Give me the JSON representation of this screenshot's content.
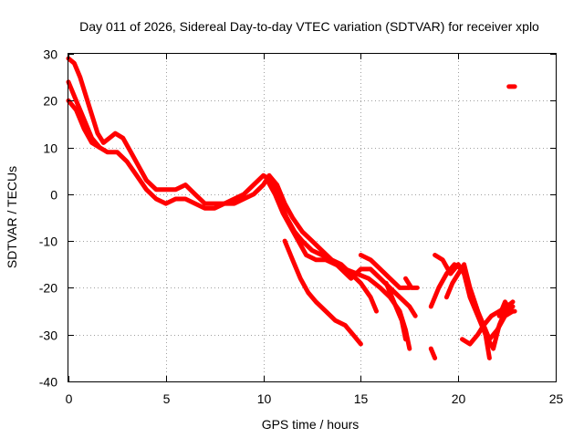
{
  "chart_data": {
    "type": "line",
    "title": "Day 011 of 2026, Sidereal Day-to-day VTEC variation (SDTVAR) for receiver xplo",
    "xlabel": "GPS time / hours",
    "ylabel": "SDTVAR / TECUs",
    "xlim": [
      0,
      25
    ],
    "ylim": [
      -40,
      30
    ],
    "xticks": [
      0,
      5,
      10,
      15,
      20,
      25
    ],
    "yticks": [
      -40,
      -30,
      -20,
      -10,
      0,
      10,
      20,
      30
    ],
    "grid": true,
    "legend": "none",
    "color": "#ff0000",
    "series": [
      {
        "name": "track-1",
        "points": [
          [
            0.0,
            29
          ],
          [
            0.3,
            28
          ],
          [
            0.6,
            25
          ],
          [
            0.9,
            21
          ],
          [
            1.2,
            17
          ],
          [
            1.5,
            13
          ],
          [
            1.8,
            11
          ],
          [
            2.1,
            12
          ],
          [
            2.4,
            13
          ],
          [
            2.8,
            12
          ],
          [
            3.2,
            9
          ],
          [
            3.6,
            6
          ],
          [
            4.0,
            3
          ],
          [
            4.5,
            1
          ],
          [
            5.0,
            1
          ],
          [
            5.5,
            1
          ],
          [
            6.0,
            2
          ],
          [
            6.5,
            0
          ],
          [
            7.0,
            -2
          ],
          [
            7.5,
            -2
          ],
          [
            8.0,
            -2
          ],
          [
            8.5,
            -1
          ],
          [
            9.0,
            0
          ],
          [
            9.5,
            2
          ],
          [
            10.0,
            4
          ],
          [
            10.4,
            3
          ],
          [
            10.8,
            -1
          ],
          [
            11.2,
            -5
          ],
          [
            11.6,
            -8
          ],
          [
            12.0,
            -10
          ],
          [
            12.5,
            -12
          ],
          [
            13.0,
            -13
          ],
          [
            13.5,
            -14
          ],
          [
            14.0,
            -16
          ],
          [
            14.5,
            -18
          ],
          [
            15.0,
            -16
          ],
          [
            15.5,
            -16
          ],
          [
            16.0,
            -18
          ],
          [
            16.5,
            -20
          ],
          [
            17.0,
            -22
          ],
          [
            17.5,
            -24
          ],
          [
            17.8,
            -26
          ]
        ]
      },
      {
        "name": "track-2",
        "points": [
          [
            0.0,
            24
          ],
          [
            0.4,
            20
          ],
          [
            0.8,
            16
          ],
          [
            1.2,
            12
          ],
          [
            1.6,
            10
          ],
          [
            2.0,
            9
          ],
          [
            2.5,
            9
          ],
          [
            3.0,
            7
          ],
          [
            3.5,
            4
          ],
          [
            4.0,
            1
          ],
          [
            4.5,
            -1
          ],
          [
            5.0,
            -2
          ],
          [
            5.5,
            -1
          ],
          [
            6.0,
            -1
          ],
          [
            6.5,
            -2
          ],
          [
            7.0,
            -3
          ],
          [
            7.5,
            -3
          ],
          [
            8.0,
            -2
          ],
          [
            8.5,
            -2
          ],
          [
            9.0,
            -1
          ],
          [
            9.5,
            0
          ],
          [
            10.0,
            2
          ],
          [
            10.3,
            4
          ],
          [
            10.7,
            2
          ],
          [
            11.1,
            -2
          ],
          [
            11.5,
            -5
          ],
          [
            12.0,
            -8
          ],
          [
            12.5,
            -10
          ],
          [
            13.0,
            -12
          ],
          [
            13.5,
            -14
          ],
          [
            14.0,
            -15
          ],
          [
            14.5,
            -17
          ],
          [
            15.0,
            -19
          ],
          [
            15.5,
            -22
          ],
          [
            15.8,
            -25
          ]
        ]
      },
      {
        "name": "track-3",
        "points": [
          [
            0.0,
            20
          ],
          [
            0.4,
            18
          ],
          [
            0.8,
            14
          ],
          [
            1.2,
            11
          ],
          [
            1.6,
            10
          ]
        ]
      },
      {
        "name": "track-4",
        "points": [
          [
            10.2,
            3
          ],
          [
            10.6,
            0
          ],
          [
            11.0,
            -4
          ],
          [
            11.4,
            -7
          ],
          [
            11.8,
            -10
          ],
          [
            12.2,
            -13
          ],
          [
            12.7,
            -14
          ],
          [
            13.2,
            -14
          ],
          [
            13.7,
            -15
          ],
          [
            14.2,
            -16
          ],
          [
            14.8,
            -17
          ],
          [
            15.4,
            -18
          ],
          [
            16.0,
            -20
          ],
          [
            16.5,
            -22
          ],
          [
            17.0,
            -25
          ],
          [
            17.3,
            -29
          ],
          [
            17.5,
            -33
          ]
        ]
      },
      {
        "name": "track-5",
        "points": [
          [
            11.1,
            -10
          ],
          [
            11.5,
            -14
          ],
          [
            11.9,
            -18
          ],
          [
            12.3,
            -21
          ],
          [
            12.7,
            -23
          ],
          [
            13.2,
            -25
          ],
          [
            13.7,
            -27
          ],
          [
            14.2,
            -28
          ],
          [
            14.6,
            -30
          ],
          [
            15.0,
            -32
          ]
        ]
      },
      {
        "name": "track-6",
        "points": [
          [
            15.0,
            -13
          ],
          [
            15.5,
            -14
          ],
          [
            16.0,
            -16
          ],
          [
            16.5,
            -18
          ],
          [
            17.0,
            -20
          ],
          [
            17.5,
            -20
          ]
        ]
      },
      {
        "name": "track-7",
        "points": [
          [
            16.3,
            -19
          ],
          [
            16.7,
            -23
          ],
          [
            17.1,
            -27
          ],
          [
            17.3,
            -31
          ]
        ]
      },
      {
        "name": "track-8",
        "points": [
          [
            17.3,
            -18
          ],
          [
            17.6,
            -20
          ],
          [
            17.9,
            -20
          ]
        ]
      },
      {
        "name": "track-9",
        "points": [
          [
            18.6,
            -33
          ],
          [
            18.8,
            -35
          ]
        ]
      },
      {
        "name": "track-10",
        "points": [
          [
            18.6,
            -24
          ],
          [
            19.0,
            -20
          ],
          [
            19.4,
            -17
          ],
          [
            19.8,
            -15
          ],
          [
            20.2,
            -16
          ],
          [
            20.6,
            -20
          ],
          [
            21.0,
            -25
          ],
          [
            21.4,
            -30
          ],
          [
            21.6,
            -35
          ]
        ]
      },
      {
        "name": "track-11",
        "points": [
          [
            18.8,
            -13
          ],
          [
            19.2,
            -14
          ],
          [
            19.6,
            -17
          ],
          [
            20.0,
            -15
          ],
          [
            20.3,
            -17
          ],
          [
            20.6,
            -22
          ],
          [
            21.0,
            -26
          ],
          [
            21.4,
            -30
          ],
          [
            21.8,
            -33
          ],
          [
            22.1,
            -28
          ],
          [
            22.4,
            -25
          ],
          [
            22.8,
            -24
          ]
        ]
      },
      {
        "name": "track-12",
        "points": [
          [
            19.4,
            -22
          ],
          [
            19.7,
            -19
          ],
          [
            20.0,
            -17
          ],
          [
            20.3,
            -15
          ],
          [
            20.6,
            -20
          ],
          [
            21.0,
            -25
          ],
          [
            21.3,
            -28
          ],
          [
            21.6,
            -31
          ],
          [
            22.0,
            -29
          ],
          [
            22.4,
            -26
          ],
          [
            22.8,
            -25
          ]
        ]
      },
      {
        "name": "track-13",
        "points": [
          [
            20.2,
            -31
          ],
          [
            20.6,
            -32
          ],
          [
            21.0,
            -30
          ],
          [
            21.3,
            -28
          ],
          [
            21.7,
            -26
          ],
          [
            22.1,
            -25
          ],
          [
            22.5,
            -24
          ],
          [
            22.8,
            -23
          ]
        ]
      },
      {
        "name": "track-14",
        "points": [
          [
            22.1,
            -26
          ],
          [
            22.4,
            -23
          ],
          [
            22.7,
            -25
          ],
          [
            22.9,
            -25
          ]
        ]
      },
      {
        "name": "track-15",
        "points": [
          [
            22.6,
            23
          ],
          [
            22.9,
            23
          ]
        ]
      }
    ]
  }
}
